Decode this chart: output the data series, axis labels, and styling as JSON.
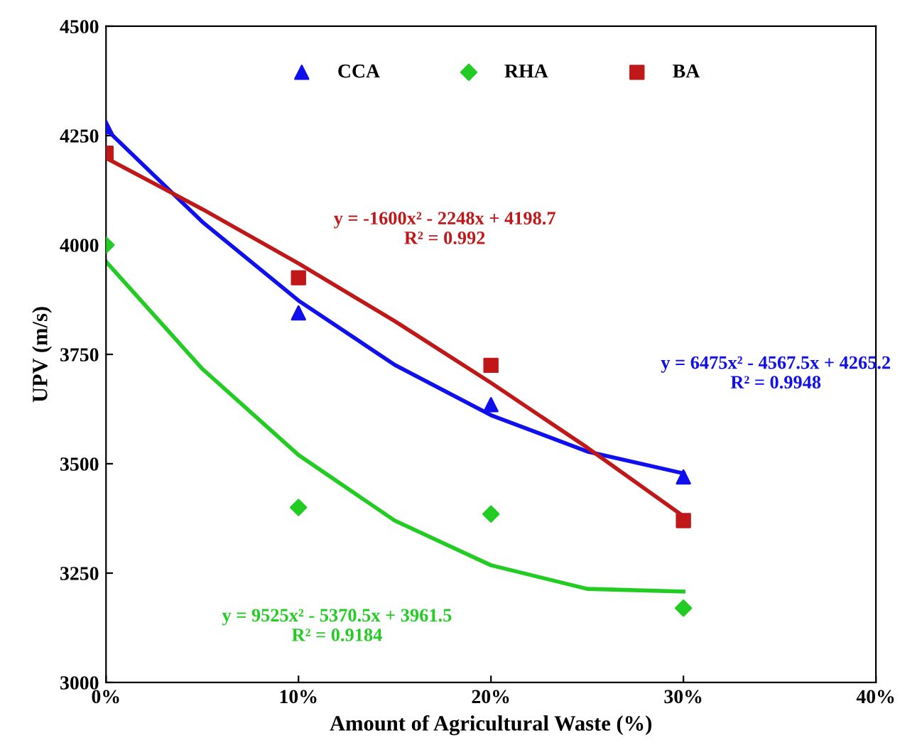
{
  "chart_data": {
    "type": "scatter",
    "xlabel": "Amount of Agricultural Waste (%)",
    "ylabel": "UPV (m/s)",
    "xlim": [
      0,
      40
    ],
    "xticks": [
      {
        "value": 0,
        "label": "0%"
      },
      {
        "value": 10,
        "label": "10%"
      },
      {
        "value": 20,
        "label": "20%"
      },
      {
        "value": 30,
        "label": "30%"
      },
      {
        "value": 40,
        "label": "40%"
      }
    ],
    "ylim": [
      3000,
      4500
    ],
    "yticks": [
      3000,
      3250,
      3500,
      3750,
      4000,
      4250,
      4500
    ],
    "grid": false,
    "legend": "top",
    "series": [
      {
        "name": "CCA",
        "marker": "triangle",
        "color": "#1010ee",
        "x": [
          0,
          10,
          20,
          30
        ],
        "values": [
          4270,
          3845,
          3635,
          3470
        ]
      },
      {
        "name": "RHA",
        "marker": "diamond",
        "color": "#22cc22",
        "x": [
          0,
          10,
          20,
          30
        ],
        "values": [
          4000,
          3400,
          3385,
          3170
        ]
      },
      {
        "name": "BA",
        "marker": "square",
        "color": "#c01818",
        "x": [
          0,
          10,
          20,
          30
        ],
        "values": [
          4210,
          3925,
          3725,
          3370
        ]
      },
      {
        "type": "line",
        "marker": "none",
        "color": "#1010ee",
        "x": [
          0,
          5,
          10,
          15,
          20,
          25,
          30
        ],
        "values": [
          4265,
          4053,
          3873,
          3726,
          3611,
          3528,
          3478
        ]
      },
      {
        "type": "line",
        "marker": "none",
        "color": "#22cc22",
        "x": [
          0,
          5,
          10,
          15,
          20,
          25,
          30
        ],
        "values": [
          3962,
          3717,
          3520,
          3370,
          3268,
          3214,
          3208
        ]
      },
      {
        "type": "line",
        "marker": "none",
        "color": "#c01818",
        "x": [
          0,
          5,
          10,
          15,
          20,
          25,
          30
        ],
        "values": [
          4199,
          4082,
          3958,
          3826,
          3685,
          3537,
          3380
        ]
      }
    ],
    "annotations": [
      "y = -1600x² - 2248x + 4198.7\nR² = 0.992",
      "y = 6475x² - 4567.5x + 4265.2\nR² = 0.9948",
      "y = 9525x² - 5370.5x + 3961.5\nR² = 0.9184"
    ]
  }
}
